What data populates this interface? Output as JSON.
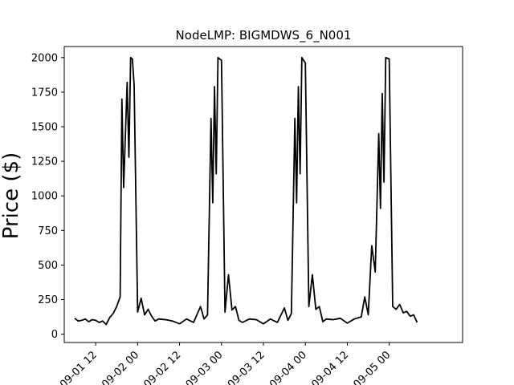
{
  "chart_data": {
    "type": "line",
    "title": "NodeLMP: BIGMDWS_6_N001",
    "xlabel": "",
    "ylabel": "Price ($)",
    "x_type": "datetime",
    "xlim": [
      "2024-09-01 03:00",
      "2024-09-05 21:00"
    ],
    "ylim": [
      -60,
      2080
    ],
    "x_ticks": [
      "2024-09-01 12:00",
      "2024-09-02 00:00",
      "2024-09-02 12:00",
      "2024-09-03 00:00",
      "2024-09-03 12:00",
      "2024-09-04 00:00",
      "2024-09-04 12:00",
      "2024-09-05 00:00"
    ],
    "x_tick_labels": [
      "09-01 12",
      "09-02 00",
      "09-02 12",
      "09-03 00",
      "09-03 12",
      "09-04 00",
      "09-04 12",
      "09-05 00"
    ],
    "y_ticks": [
      0,
      250,
      500,
      750,
      1000,
      1250,
      1500,
      1750,
      2000
    ],
    "y_tick_labels": [
      "0",
      "250",
      "500",
      "750",
      "1000",
      "1250",
      "1500",
      "1750",
      "2000"
    ],
    "grid": false,
    "legend": "none",
    "line_color": "#000000",
    "series": [
      {
        "x": [
          "2024-09-01 06:00",
          "2024-09-01 07:00",
          "2024-09-01 08:00",
          "2024-09-01 09:00",
          "2024-09-01 10:00",
          "2024-09-01 11:00",
          "2024-09-01 12:00",
          "2024-09-01 13:00",
          "2024-09-01 14:00",
          "2024-09-01 15:00",
          "2024-09-01 16:00",
          "2024-09-01 17:00",
          "2024-09-01 18:00",
          "2024-09-01 19:00",
          "2024-09-01 19:30",
          "2024-09-01 20:00",
          "2024-09-01 21:00",
          "2024-09-01 21:30",
          "2024-09-01 22:00",
          "2024-09-01 22:30",
          "2024-09-01 23:00",
          "2024-09-02 00:00",
          "2024-09-02 01:00",
          "2024-09-02 02:00",
          "2024-09-02 03:00",
          "2024-09-02 04:00",
          "2024-09-02 05:00",
          "2024-09-02 06:00",
          "2024-09-02 08:00",
          "2024-09-02 10:00",
          "2024-09-02 12:00",
          "2024-09-02 14:00",
          "2024-09-02 16:00",
          "2024-09-02 18:00",
          "2024-09-02 19:00",
          "2024-09-02 20:00",
          "2024-09-02 21:00",
          "2024-09-02 21:30",
          "2024-09-02 22:00",
          "2024-09-02 22:30",
          "2024-09-02 23:00",
          "2024-09-03 00:00",
          "2024-09-03 01:00",
          "2024-09-03 02:00",
          "2024-09-03 03:00",
          "2024-09-03 04:00",
          "2024-09-03 05:00",
          "2024-09-03 06:00",
          "2024-09-03 08:00",
          "2024-09-03 10:00",
          "2024-09-03 12:00",
          "2024-09-03 14:00",
          "2024-09-03 16:00",
          "2024-09-03 18:00",
          "2024-09-03 19:00",
          "2024-09-03 20:00",
          "2024-09-03 21:00",
          "2024-09-03 21:30",
          "2024-09-03 22:00",
          "2024-09-03 22:30",
          "2024-09-03 23:00",
          "2024-09-04 00:00",
          "2024-09-04 01:00",
          "2024-09-04 02:00",
          "2024-09-04 03:00",
          "2024-09-04 04:00",
          "2024-09-04 05:00",
          "2024-09-04 06:00",
          "2024-09-04 08:00",
          "2024-09-04 10:00",
          "2024-09-04 12:00",
          "2024-09-04 14:00",
          "2024-09-04 16:00",
          "2024-09-04 17:00",
          "2024-09-04 18:00",
          "2024-09-04 19:00",
          "2024-09-04 20:00",
          "2024-09-04 21:00",
          "2024-09-04 21:30",
          "2024-09-04 22:00",
          "2024-09-04 22:30",
          "2024-09-04 23:00",
          "2024-09-05 00:00",
          "2024-09-05 01:00",
          "2024-09-05 02:00",
          "2024-09-05 03:00",
          "2024-09-05 04:00",
          "2024-09-05 05:00",
          "2024-09-05 06:00",
          "2024-09-05 07:00",
          "2024-09-05 08:00"
        ],
        "y": [
          115,
          95,
          100,
          110,
          90,
          105,
          100,
          85,
          95,
          70,
          120,
          150,
          200,
          270,
          1700,
          1060,
          1820,
          1280,
          2000,
          1990,
          1800,
          160,
          260,
          140,
          180,
          130,
          95,
          110,
          105,
          95,
          75,
          110,
          85,
          200,
          110,
          140,
          1560,
          950,
          1790,
          1160,
          2000,
          1980,
          160,
          430,
          175,
          200,
          100,
          85,
          110,
          105,
          75,
          110,
          85,
          190,
          100,
          150,
          1560,
          950,
          1790,
          1160,
          2000,
          1960,
          200,
          430,
          180,
          200,
          90,
          110,
          105,
          115,
          80,
          110,
          125,
          270,
          140,
          640,
          450,
          1450,
          910,
          1740,
          1100,
          2000,
          1990,
          200,
          180,
          215,
          155,
          165,
          130,
          140,
          85
        ]
      }
    ]
  }
}
